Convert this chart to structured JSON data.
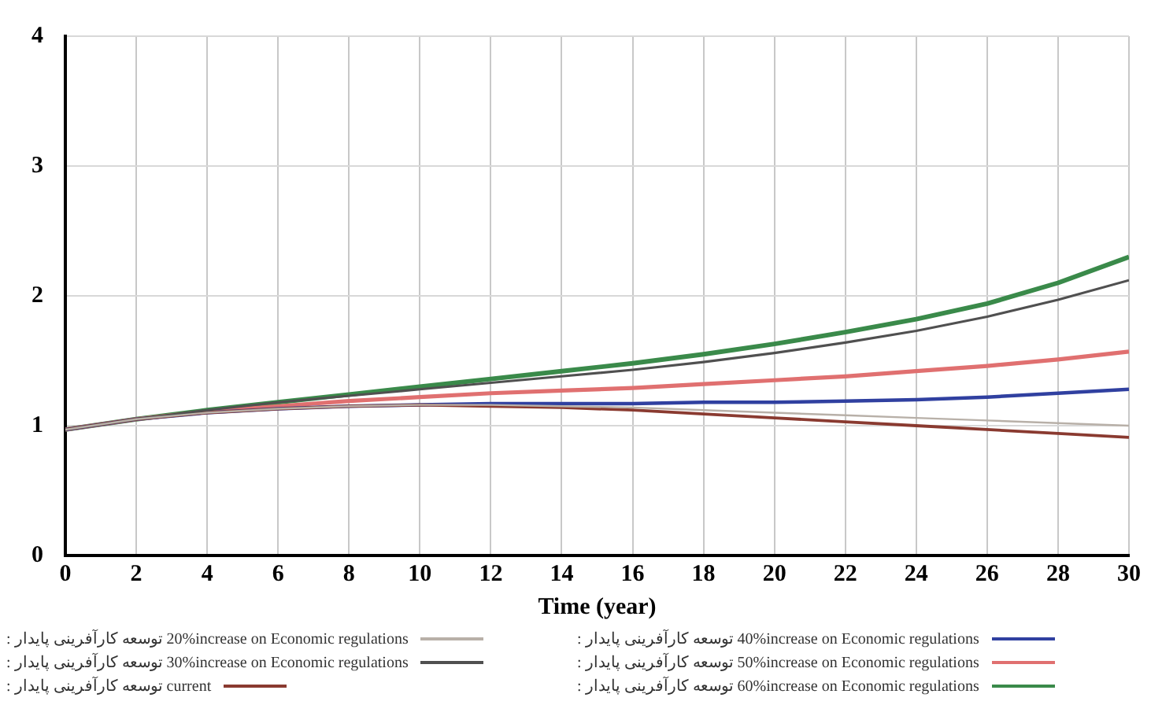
{
  "chart_data": {
    "type": "line",
    "xlabel": "Time (year)",
    "x": [
      0,
      2,
      4,
      6,
      8,
      10,
      12,
      14,
      16,
      18,
      20,
      22,
      24,
      26,
      28,
      30
    ],
    "xlim": [
      0,
      30
    ],
    "xticks": [
      0,
      2,
      4,
      6,
      8,
      10,
      12,
      14,
      16,
      18,
      20,
      22,
      24,
      26,
      28,
      30
    ],
    "ylim": [
      0,
      4
    ],
    "yticks": [
      0,
      1,
      2,
      3,
      4
    ],
    "grid": true,
    "legend": "bottom",
    "marker": "none",
    "line_style": "solid",
    "series": [
      {
        "name": "توسعه کارآفرینی پایدار : 20%increase on Economic regulations",
        "color": "#b8b0a8",
        "values": [
          0.97,
          1.05,
          1.1,
          1.13,
          1.15,
          1.16,
          1.16,
          1.15,
          1.14,
          1.12,
          1.1,
          1.08,
          1.06,
          1.04,
          1.02,
          1.0
        ]
      },
      {
        "name": "توسعه کارآفرینی پایدار : 30%increase on Economic regulations",
        "color": "#505050",
        "values": [
          0.97,
          1.05,
          1.12,
          1.18,
          1.23,
          1.28,
          1.33,
          1.38,
          1.43,
          1.49,
          1.56,
          1.64,
          1.73,
          1.84,
          1.97,
          2.12
        ]
      },
      {
        "name": "توسعه کارآفرینی پایدار : current",
        "color": "#8a3a30",
        "values": [
          0.97,
          1.05,
          1.1,
          1.13,
          1.15,
          1.16,
          1.15,
          1.14,
          1.12,
          1.09,
          1.06,
          1.03,
          1.0,
          0.97,
          0.94,
          0.91
        ]
      },
      {
        "name": "توسعه کارآفرینی پایدار : 40%increase on Economic regulations",
        "color": "#3040a0",
        "values": [
          0.97,
          1.05,
          1.1,
          1.13,
          1.15,
          1.16,
          1.17,
          1.17,
          1.17,
          1.18,
          1.18,
          1.19,
          1.2,
          1.22,
          1.25,
          1.28
        ]
      },
      {
        "name": "توسعه کارآفرینی پایدار : 50%increase on Economic regulations",
        "color": "#e07070",
        "values": [
          0.97,
          1.05,
          1.11,
          1.15,
          1.19,
          1.22,
          1.25,
          1.27,
          1.29,
          1.32,
          1.35,
          1.38,
          1.42,
          1.46,
          1.51,
          1.57
        ]
      },
      {
        "name": "توسعه کارآفرینی پایدار : 60%increase on Economic regulations",
        "color": "#3a8a4a",
        "values": [
          0.97,
          1.05,
          1.12,
          1.18,
          1.24,
          1.3,
          1.36,
          1.42,
          1.48,
          1.55,
          1.63,
          1.72,
          1.82,
          1.94,
          2.1,
          2.3
        ]
      }
    ]
  }
}
